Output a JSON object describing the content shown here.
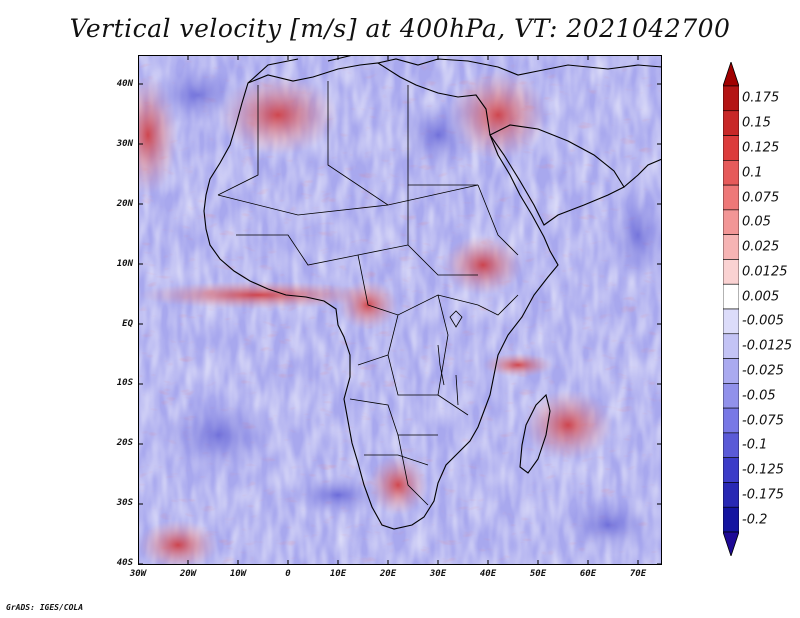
{
  "title": "Vertical velocity [m/s] at 400hPa, VT: 2021042700",
  "map": {
    "region": "Africa",
    "lon_range": [
      -30,
      75
    ],
    "lat_range": [
      -40,
      45
    ],
    "lat_ticks": [
      "40N",
      "30N",
      "20N",
      "10N",
      "EQ",
      "10S",
      "20S",
      "30S",
      "40S"
    ],
    "lon_ticks": [
      "30W",
      "20W",
      "10W",
      "0",
      "10E",
      "20E",
      "30E",
      "40E",
      "50E",
      "60E",
      "70E"
    ]
  },
  "colorbar": {
    "labels": [
      "0.175",
      "0.15",
      "0.125",
      "0.1",
      "0.075",
      "0.05",
      "0.025",
      "0.0125",
      "0.005",
      "-0.005",
      "-0.0125",
      "-0.025",
      "-0.05",
      "-0.075",
      "-0.1",
      "-0.125",
      "-0.175",
      "-0.2"
    ],
    "colors": [
      "#b41414",
      "#c82828",
      "#dc3c3c",
      "#e65a5a",
      "#ee7878",
      "#f29696",
      "#f6b4b4",
      "#fad2d2",
      "#ffffff",
      "#dcdcfa",
      "#c3c3f5",
      "#aaaaf0",
      "#9191eb",
      "#7878e6",
      "#5a5ad7",
      "#3c3cc8",
      "#2828b4",
      "#1414a0"
    ],
    "top_arrow_color": "#a00000",
    "bottom_arrow_color": "#1e0a96"
  },
  "credit": "GrADS: IGES/COLA"
}
